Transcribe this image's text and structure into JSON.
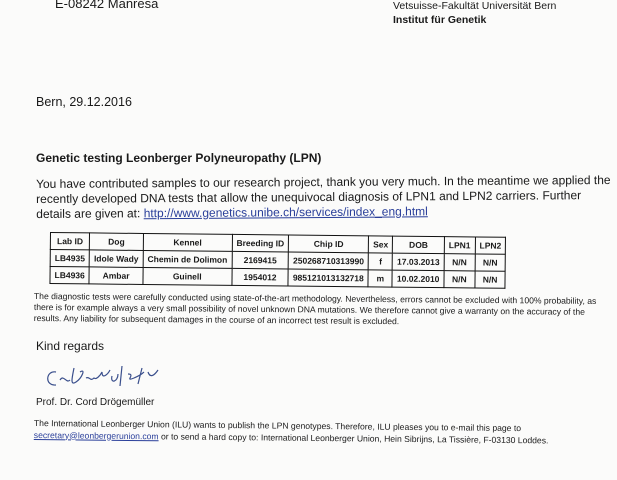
{
  "sender_address": "E-08242 Manresa",
  "letterhead": {
    "faculty": "Vetsuisse-Fakultät Universität Bern",
    "institute": "Institut für Genetik"
  },
  "date_line": "Bern, 29.12.2016",
  "subject": "Genetic testing Leonberger Polyneuropathy (LPN)",
  "intro_text": "You have contributed samples to our research project, thank you very much. In the meantime we applied the recently developed DNA tests that allow the unequivocal diagnosis of LPN1 and LPN2 carriers. Further details are given at: ",
  "intro_link": "http://www.genetics.unibe.ch/services/index_eng.html",
  "table": {
    "headers": [
      "Lab ID",
      "Dog",
      "Kennel",
      "Breeding ID",
      "Chip ID",
      "Sex",
      "DOB",
      "LPN1",
      "LPN2"
    ],
    "rows": [
      [
        "LB4935",
        "Idole Wady",
        "Chemin de Dolimon",
        "2169415",
        "250268710313990",
        "f",
        "17.03.2013",
        "N/N",
        "N/N"
      ],
      [
        "LB4936",
        "Ambar",
        "Guinell",
        "1954012",
        "985121013132718",
        "m",
        "10.02.2010",
        "N/N",
        "N/N"
      ]
    ]
  },
  "disclaimer": "The diagnostic tests were carefully conducted using state-of-the-art methodology. Nevertheless, errors cannot be excluded with 100% probability, as there is for example always a very small possibility of novel unknown DNA mutations. We therefore cannot give a warranty on the accuracy of the results. Any liability for subsequent damages in the course of an incorrect test result is excluded.",
  "closing": "Kind regards",
  "signature_name": "Prof. Dr. Cord Drögemüller",
  "ilu_text_before": "The International Leonberger Union (ILU) wants to publish the LPN genotypes. Therefore, ILU pleases you to e-mail this page to ",
  "ilu_email": "secretary@leonbergerunion.com",
  "ilu_text_after": " or to send a hard copy to: International Leonberger Union, Hein Sibrijns, La Tissière, F-03130 Loddes."
}
